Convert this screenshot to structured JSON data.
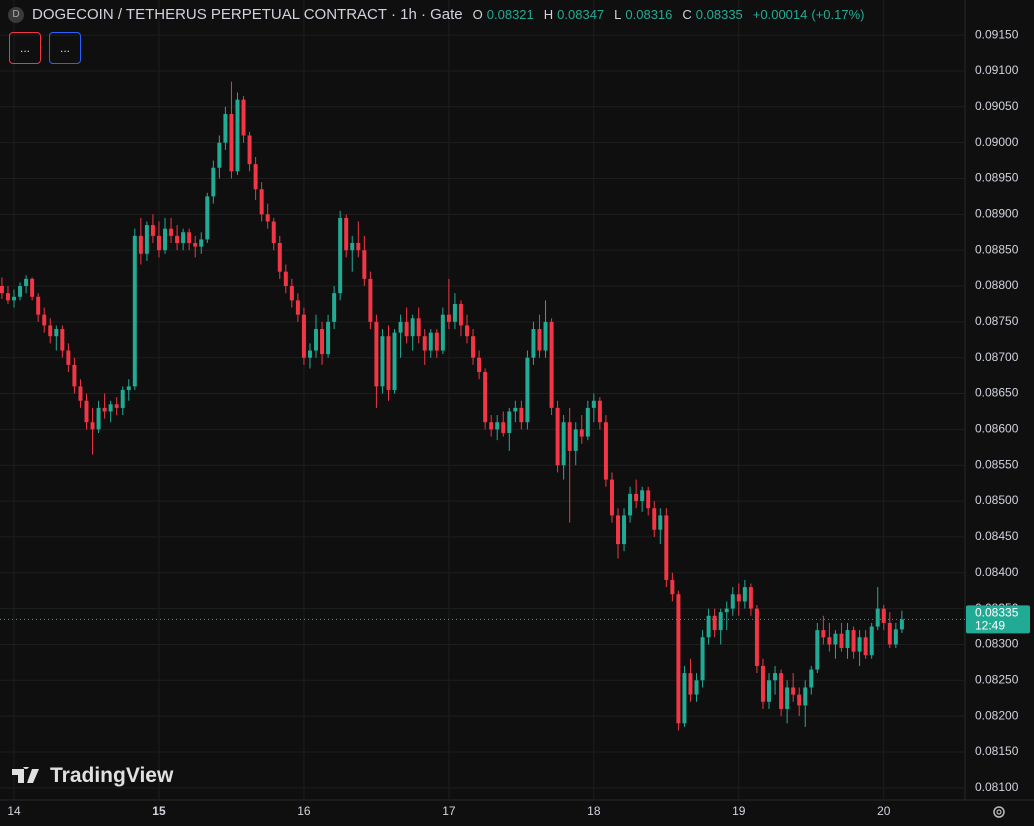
{
  "chart_data": {
    "type": "candlestick",
    "title": "DOGECOIN / TETHERUS PERPETUAL CONTRACT · 1h · Gate",
    "symbol_icon": "D",
    "ohlc_labels": [
      "O",
      "H",
      "L",
      "C"
    ],
    "change": {
      "value": 0.00014,
      "label": "+0.00014"
    },
    "change_percent": {
      "value": 0.17,
      "label": "(+0.17%)"
    },
    "countdown": "12:49",
    "indicator_buttons": [
      "...",
      "..."
    ],
    "watermark": "TradingView",
    "up_color": "#22ab94",
    "down_color": "#f23645",
    "grid": true,
    "ylim": [
      0.08083,
      0.09199
    ],
    "yticks": [
      {
        "value": 0.0915,
        "label": "0.09150"
      },
      {
        "value": 0.091,
        "label": "0.09100"
      },
      {
        "value": 0.0905,
        "label": "0.09050"
      },
      {
        "value": 0.09,
        "label": "0.09000"
      },
      {
        "value": 0.0895,
        "label": "0.08950"
      },
      {
        "value": 0.089,
        "label": "0.08900"
      },
      {
        "value": 0.0885,
        "label": "0.08850"
      },
      {
        "value": 0.088,
        "label": "0.08800"
      },
      {
        "value": 0.0875,
        "label": "0.08750"
      },
      {
        "value": 0.087,
        "label": "0.08700"
      },
      {
        "value": 0.0865,
        "label": "0.08650"
      },
      {
        "value": 0.086,
        "label": "0.08600"
      },
      {
        "value": 0.0855,
        "label": "0.08550"
      },
      {
        "value": 0.085,
        "label": "0.08500"
      },
      {
        "value": 0.0845,
        "label": "0.08450"
      },
      {
        "value": 0.084,
        "label": "0.08400"
      },
      {
        "value": 0.0835,
        "label": "0.08350"
      },
      {
        "value": 0.083,
        "label": "0.08300"
      },
      {
        "value": 0.0825,
        "label": "0.08250"
      },
      {
        "value": 0.082,
        "label": "0.08200"
      },
      {
        "value": 0.0815,
        "label": "0.08150"
      },
      {
        "value": 0.081,
        "label": "0.08100"
      }
    ],
    "xlim": [
      -0.32,
      159.45
    ],
    "xticks": [
      {
        "value": 2,
        "label": "14"
      },
      {
        "value": 26,
        "label": "15",
        "bold": true
      },
      {
        "value": 50,
        "label": "16"
      },
      {
        "value": 74,
        "label": "17"
      },
      {
        "value": 98,
        "label": "18"
      },
      {
        "value": 122,
        "label": "19"
      },
      {
        "value": 146,
        "label": "20"
      }
    ],
    "candles": [
      [
        0.088,
        0.08812,
        0.08782,
        0.0879
      ],
      [
        0.0879,
        0.088,
        0.08775,
        0.0878
      ],
      [
        0.0878,
        0.08795,
        0.0877,
        0.08785
      ],
      [
        0.08785,
        0.08805,
        0.0878,
        0.088
      ],
      [
        0.088,
        0.08815,
        0.0879,
        0.0881
      ],
      [
        0.0881,
        0.08812,
        0.0878,
        0.08785
      ],
      [
        0.08785,
        0.0879,
        0.0875,
        0.0876
      ],
      [
        0.0876,
        0.0877,
        0.08735,
        0.08745
      ],
      [
        0.08745,
        0.08755,
        0.0872,
        0.0873
      ],
      [
        0.0873,
        0.08745,
        0.0871,
        0.0874
      ],
      [
        0.0874,
        0.08745,
        0.087,
        0.0871
      ],
      [
        0.0871,
        0.0872,
        0.0868,
        0.0869
      ],
      [
        0.0869,
        0.087,
        0.0865,
        0.0866
      ],
      [
        0.0866,
        0.0867,
        0.0863,
        0.0864
      ],
      [
        0.0864,
        0.0865,
        0.086,
        0.0861
      ],
      [
        0.0861,
        0.0863,
        0.08565,
        0.086
      ],
      [
        0.086,
        0.0864,
        0.08595,
        0.0863
      ],
      [
        0.0863,
        0.0865,
        0.08615,
        0.08625
      ],
      [
        0.08625,
        0.0864,
        0.0861,
        0.08635
      ],
      [
        0.08635,
        0.08645,
        0.0862,
        0.0863
      ],
      [
        0.0863,
        0.0866,
        0.0862,
        0.08655
      ],
      [
        0.08655,
        0.0867,
        0.0864,
        0.0866
      ],
      [
        0.0866,
        0.0888,
        0.08655,
        0.0887
      ],
      [
        0.0887,
        0.08895,
        0.0883,
        0.08845
      ],
      [
        0.08845,
        0.0889,
        0.08835,
        0.08885
      ],
      [
        0.08885,
        0.089,
        0.0886,
        0.0887
      ],
      [
        0.0887,
        0.0889,
        0.0884,
        0.0885
      ],
      [
        0.0885,
        0.08895,
        0.08845,
        0.0888
      ],
      [
        0.0888,
        0.08895,
        0.0886,
        0.0887
      ],
      [
        0.0887,
        0.08885,
        0.0885,
        0.0886
      ],
      [
        0.0886,
        0.0888,
        0.0885,
        0.08875
      ],
      [
        0.08875,
        0.0888,
        0.0885,
        0.0886
      ],
      [
        0.0886,
        0.0887,
        0.0884,
        0.08855
      ],
      [
        0.08855,
        0.08875,
        0.08845,
        0.08865
      ],
      [
        0.08865,
        0.0893,
        0.0886,
        0.08925
      ],
      [
        0.08925,
        0.08975,
        0.08915,
        0.08965
      ],
      [
        0.08965,
        0.0901,
        0.0895,
        0.09
      ],
      [
        0.09,
        0.0905,
        0.0899,
        0.0904
      ],
      [
        0.0904,
        0.09085,
        0.0895,
        0.0896
      ],
      [
        0.0896,
        0.0907,
        0.08955,
        0.0906
      ],
      [
        0.0906,
        0.09065,
        0.09,
        0.0901
      ],
      [
        0.0901,
        0.09015,
        0.0896,
        0.0897
      ],
      [
        0.0897,
        0.0898,
        0.0892,
        0.08935
      ],
      [
        0.08935,
        0.08945,
        0.0889,
        0.089
      ],
      [
        0.089,
        0.08915,
        0.0888,
        0.0889
      ],
      [
        0.0889,
        0.08895,
        0.0885,
        0.0886
      ],
      [
        0.0886,
        0.0887,
        0.0881,
        0.0882
      ],
      [
        0.0882,
        0.0883,
        0.0879,
        0.088
      ],
      [
        0.088,
        0.0881,
        0.0877,
        0.0878
      ],
      [
        0.0878,
        0.0879,
        0.0875,
        0.0876
      ],
      [
        0.0876,
        0.0877,
        0.0869,
        0.087
      ],
      [
        0.087,
        0.0872,
        0.08685,
        0.0871
      ],
      [
        0.0871,
        0.0876,
        0.087,
        0.0874
      ],
      [
        0.0874,
        0.0875,
        0.0869,
        0.08705
      ],
      [
        0.08705,
        0.0876,
        0.087,
        0.0875
      ],
      [
        0.0875,
        0.088,
        0.0874,
        0.0879
      ],
      [
        0.0879,
        0.08905,
        0.0878,
        0.08895
      ],
      [
        0.08895,
        0.089,
        0.0884,
        0.0885
      ],
      [
        0.0885,
        0.0887,
        0.0882,
        0.0886
      ],
      [
        0.0886,
        0.0889,
        0.0884,
        0.0885
      ],
      [
        0.0885,
        0.0887,
        0.088,
        0.0881
      ],
      [
        0.0881,
        0.0882,
        0.0874,
        0.0875
      ],
      [
        0.0875,
        0.0876,
        0.0863,
        0.0866
      ],
      [
        0.0866,
        0.0874,
        0.0865,
        0.0873
      ],
      [
        0.0873,
        0.08745,
        0.0864,
        0.08655
      ],
      [
        0.08655,
        0.0874,
        0.0865,
        0.08735
      ],
      [
        0.08735,
        0.0876,
        0.087,
        0.0875
      ],
      [
        0.0875,
        0.0877,
        0.0872,
        0.0873
      ],
      [
        0.0873,
        0.0876,
        0.0871,
        0.08755
      ],
      [
        0.08755,
        0.0877,
        0.0872,
        0.0873
      ],
      [
        0.0873,
        0.0874,
        0.0869,
        0.0871
      ],
      [
        0.0871,
        0.0874,
        0.087,
        0.08735
      ],
      [
        0.08735,
        0.0874,
        0.087,
        0.0871
      ],
      [
        0.0871,
        0.0877,
        0.08705,
        0.0876
      ],
      [
        0.0876,
        0.0881,
        0.0874,
        0.0875
      ],
      [
        0.0875,
        0.0879,
        0.0874,
        0.08775
      ],
      [
        0.08775,
        0.0878,
        0.0873,
        0.08745
      ],
      [
        0.08745,
        0.0876,
        0.0872,
        0.0873
      ],
      [
        0.0873,
        0.0874,
        0.0869,
        0.087
      ],
      [
        0.087,
        0.0871,
        0.0867,
        0.0868
      ],
      [
        0.0868,
        0.08685,
        0.086,
        0.0861
      ],
      [
        0.0861,
        0.0862,
        0.0859,
        0.086
      ],
      [
        0.086,
        0.0862,
        0.08585,
        0.0861
      ],
      [
        0.0861,
        0.08625,
        0.0859,
        0.08595
      ],
      [
        0.08595,
        0.0863,
        0.0857,
        0.08625
      ],
      [
        0.08625,
        0.0864,
        0.0861,
        0.0863
      ],
      [
        0.0863,
        0.0864,
        0.086,
        0.0861
      ],
      [
        0.0861,
        0.0871,
        0.086,
        0.087
      ],
      [
        0.087,
        0.0875,
        0.0869,
        0.0874
      ],
      [
        0.0874,
        0.0876,
        0.087,
        0.0871
      ],
      [
        0.0871,
        0.0878,
        0.087,
        0.0875
      ],
      [
        0.0875,
        0.08755,
        0.0862,
        0.0863
      ],
      [
        0.0863,
        0.0864,
        0.0854,
        0.0855
      ],
      [
        0.0855,
        0.0862,
        0.0853,
        0.0861
      ],
      [
        0.0861,
        0.0863,
        0.0847,
        0.0857
      ],
      [
        0.0857,
        0.0861,
        0.0855,
        0.086
      ],
      [
        0.086,
        0.0862,
        0.0858,
        0.0859
      ],
      [
        0.0859,
        0.0864,
        0.08585,
        0.0863
      ],
      [
        0.0863,
        0.0865,
        0.0861,
        0.0864
      ],
      [
        0.0864,
        0.08645,
        0.086,
        0.0861
      ],
      [
        0.0861,
        0.0862,
        0.0852,
        0.0853
      ],
      [
        0.0853,
        0.0854,
        0.0847,
        0.0848
      ],
      [
        0.0848,
        0.0849,
        0.0842,
        0.0844
      ],
      [
        0.0844,
        0.0849,
        0.0843,
        0.0848
      ],
      [
        0.0848,
        0.0852,
        0.0847,
        0.0851
      ],
      [
        0.0851,
        0.0853,
        0.0849,
        0.085
      ],
      [
        0.085,
        0.0852,
        0.08485,
        0.08515
      ],
      [
        0.08515,
        0.0852,
        0.0848,
        0.0849
      ],
      [
        0.0849,
        0.085,
        0.0845,
        0.0846
      ],
      [
        0.0846,
        0.0849,
        0.0844,
        0.0848
      ],
      [
        0.0848,
        0.0849,
        0.0838,
        0.0839
      ],
      [
        0.0839,
        0.084,
        0.0836,
        0.0837
      ],
      [
        0.0837,
        0.08375,
        0.0818,
        0.0819
      ],
      [
        0.0819,
        0.0827,
        0.08185,
        0.0826
      ],
      [
        0.0826,
        0.0828,
        0.0822,
        0.0823
      ],
      [
        0.0823,
        0.0826,
        0.0822,
        0.0825
      ],
      [
        0.0825,
        0.0832,
        0.0824,
        0.0831
      ],
      [
        0.0831,
        0.0835,
        0.083,
        0.0834
      ],
      [
        0.0834,
        0.0835,
        0.0831,
        0.0832
      ],
      [
        0.0832,
        0.0835,
        0.083,
        0.08345
      ],
      [
        0.08345,
        0.0836,
        0.0832,
        0.0835
      ],
      [
        0.0835,
        0.0838,
        0.0834,
        0.0837
      ],
      [
        0.0837,
        0.08385,
        0.0834,
        0.0836
      ],
      [
        0.0836,
        0.0839,
        0.0835,
        0.0838
      ],
      [
        0.0838,
        0.08385,
        0.0834,
        0.0835
      ],
      [
        0.0835,
        0.08355,
        0.0826,
        0.0827
      ],
      [
        0.0827,
        0.0828,
        0.0821,
        0.0822
      ],
      [
        0.0822,
        0.0826,
        0.0821,
        0.0825
      ],
      [
        0.0825,
        0.0827,
        0.0823,
        0.0826
      ],
      [
        0.0826,
        0.08265,
        0.082,
        0.0821
      ],
      [
        0.0821,
        0.0825,
        0.0819,
        0.0824
      ],
      [
        0.0824,
        0.0826,
        0.0822,
        0.0823
      ],
      [
        0.0823,
        0.0824,
        0.082,
        0.08215
      ],
      [
        0.08215,
        0.0825,
        0.08185,
        0.0824
      ],
      [
        0.0824,
        0.0827,
        0.0823,
        0.08265
      ],
      [
        0.08265,
        0.0833,
        0.0826,
        0.0832
      ],
      [
        0.0832,
        0.0834,
        0.083,
        0.0831
      ],
      [
        0.0831,
        0.0833,
        0.0829,
        0.083
      ],
      [
        0.083,
        0.0832,
        0.0828,
        0.08315
      ],
      [
        0.08315,
        0.0833,
        0.0829,
        0.08295
      ],
      [
        0.08295,
        0.0833,
        0.0828,
        0.0832
      ],
      [
        0.0832,
        0.08325,
        0.0828,
        0.0829
      ],
      [
        0.0829,
        0.0832,
        0.0827,
        0.0831
      ],
      [
        0.0831,
        0.0832,
        0.0828,
        0.08285
      ],
      [
        0.08285,
        0.0833,
        0.0828,
        0.08325
      ],
      [
        0.08325,
        0.0838,
        0.0832,
        0.0835
      ],
      [
        0.0835,
        0.08355,
        0.0832,
        0.0833
      ],
      [
        0.0833,
        0.08345,
        0.08295,
        0.083
      ],
      [
        0.083,
        0.0833,
        0.08295,
        0.08321
      ],
      [
        0.08321,
        0.08347,
        0.08316,
        0.08335
      ]
    ]
  }
}
